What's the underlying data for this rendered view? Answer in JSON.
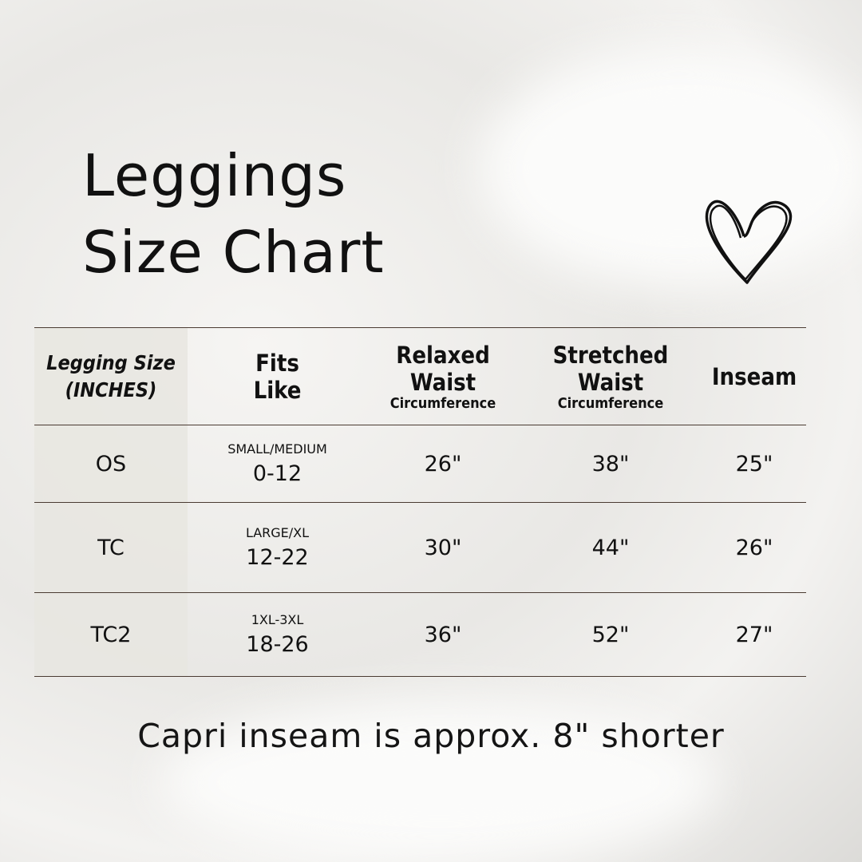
{
  "title_line1": "Leggings",
  "title_line2": "Size Chart",
  "icon": "heart-icon",
  "headers": {
    "size": [
      "Legging Size",
      "(INCHES)"
    ],
    "fits": [
      "Fits",
      "Like"
    ],
    "relaxed": [
      "Relaxed",
      "Waist",
      "Circumference"
    ],
    "stretched": [
      "Stretched",
      "Waist",
      "Circumference"
    ],
    "inseam": "Inseam"
  },
  "rows": [
    {
      "size": "OS",
      "fits_label": "SMALL/MEDIUM",
      "fits_range": "0-12",
      "relaxed": "26\"",
      "stretched": "38\"",
      "inseam": "25\""
    },
    {
      "size": "TC",
      "fits_label": "LARGE/XL",
      "fits_range": "12-22",
      "relaxed": "30\"",
      "stretched": "44\"",
      "inseam": "26\""
    },
    {
      "size": "TC2",
      "fits_label": "1XL-3XL",
      "fits_range": "18-26",
      "relaxed": "36\"",
      "stretched": "52\"",
      "inseam": "27\""
    }
  ],
  "note": "Capri inseam is approx. 8\" shorter"
}
